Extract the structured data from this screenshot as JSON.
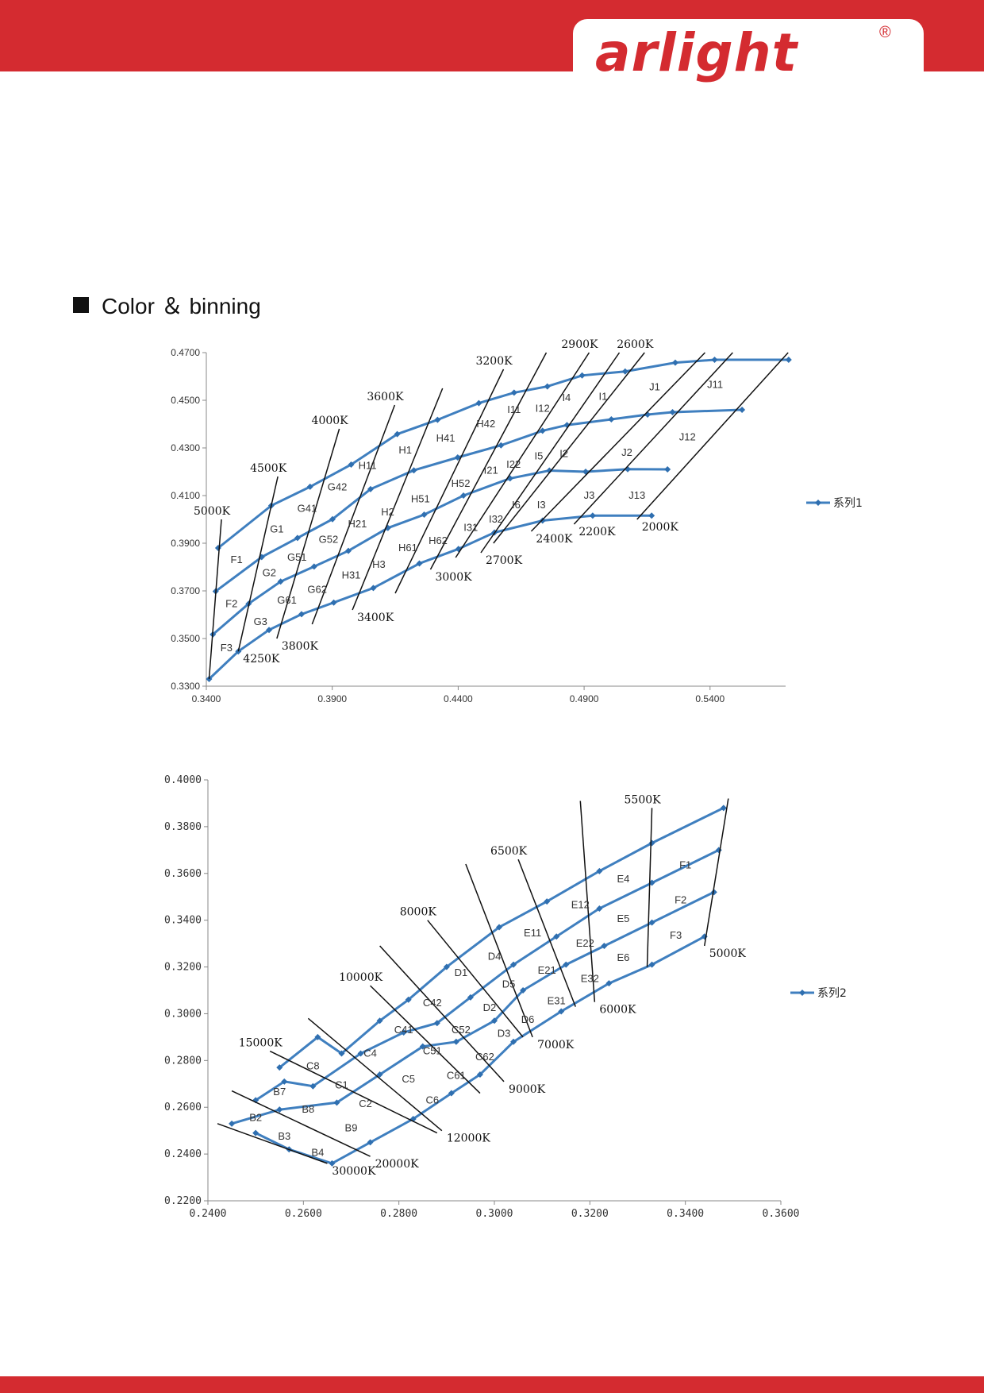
{
  "header": {
    "logo_text": "arlight",
    "logo_mark": "®",
    "accent": "#d42b30"
  },
  "section": {
    "title": "Color ＆ binning"
  },
  "chart_data": [
    {
      "type": "line",
      "legend": "系列1",
      "legend_position": "right",
      "xlim": [
        0.34,
        0.57
      ],
      "ylim": [
        0.33,
        0.47
      ],
      "x_ticks": [
        "0.3400",
        "0.3900",
        "0.4400",
        "0.4900",
        "0.5400"
      ],
      "y_ticks": [
        "0.3300",
        "0.3500",
        "0.3700",
        "0.3900",
        "0.4100",
        "0.4300",
        "0.4500",
        "0.4700"
      ],
      "curves": [
        {
          "x": [
            0.3447,
            0.3658,
            0.3812,
            0.3975,
            0.4158,
            0.4318,
            0.4482,
            0.4622,
            0.4754,
            0.4892,
            0.5063,
            0.5262,
            0.5418,
            0.5712
          ],
          "y": [
            0.388,
            0.4058,
            0.4137,
            0.423,
            0.4358,
            0.4418,
            0.4488,
            0.4532,
            0.4558,
            0.4604,
            0.4621,
            0.4658,
            0.467,
            0.467
          ]
        },
        {
          "x": [
            0.3437,
            0.362,
            0.3762,
            0.3901,
            0.4052,
            0.4224,
            0.4398,
            0.457,
            0.4735,
            0.4832,
            0.5008,
            0.5152,
            0.5251,
            0.5527
          ],
          "y": [
            0.3698,
            0.3842,
            0.3922,
            0.4001,
            0.4127,
            0.4206,
            0.426,
            0.4311,
            0.4372,
            0.4396,
            0.442,
            0.444,
            0.445,
            0.446
          ]
        },
        {
          "x": [
            0.3426,
            0.3568,
            0.3695,
            0.3828,
            0.3964,
            0.4121,
            0.4265,
            0.4421,
            0.4606,
            0.4762,
            0.4906,
            0.5073,
            0.5231
          ],
          "y": [
            0.3517,
            0.3646,
            0.3739,
            0.3802,
            0.3868,
            0.3964,
            0.402,
            0.41,
            0.4172,
            0.4205,
            0.42,
            0.4211,
            0.421
          ]
        },
        {
          "x": [
            0.3411,
            0.3527,
            0.3649,
            0.3778,
            0.3906,
            0.4063,
            0.4246,
            0.4401,
            0.4544,
            0.4735,
            0.4934,
            0.5168
          ],
          "y": [
            0.333,
            0.3446,
            0.3536,
            0.3602,
            0.3651,
            0.3712,
            0.3815,
            0.3876,
            0.3945,
            0.3995,
            0.4016,
            0.4016
          ]
        }
      ],
      "isotherms": [
        {
          "label": "5000K",
          "pos": "top",
          "from": [
            0.3411,
            0.333
          ],
          "to": [
            0.346,
            0.4
          ]
        },
        {
          "label": "4500K",
          "pos": "top",
          "from": [
            0.3527,
            0.3446
          ],
          "to": [
            0.3684,
            0.418
          ]
        },
        {
          "label": "4250K",
          "pos": "bottom",
          "from": [
            0.3527,
            0.3446
          ],
          "to": [
            0.3684,
            0.418
          ]
        },
        {
          "label": "4000K",
          "pos": "top",
          "from": [
            0.368,
            0.35
          ],
          "to": [
            0.3928,
            0.438
          ]
        },
        {
          "label": "3800K",
          "pos": "bottom",
          "from": [
            0.368,
            0.35
          ],
          "to": [
            0.3928,
            0.438
          ]
        },
        {
          "label": "3600K",
          "pos": "top",
          "from": [
            0.382,
            0.356
          ],
          "to": [
            0.4148,
            0.448
          ]
        },
        {
          "label": "3400K",
          "pos": "bottom",
          "from": [
            0.398,
            0.362
          ],
          "to": [
            0.4338,
            0.455
          ]
        },
        {
          "label": "3200K",
          "pos": "top",
          "from": [
            0.415,
            0.369
          ],
          "to": [
            0.458,
            0.463
          ]
        },
        {
          "label": "3000K",
          "pos": "bottom",
          "from": [
            0.429,
            0.379
          ],
          "to": [
            0.475,
            0.47
          ]
        },
        {
          "label": "2900K",
          "pos": "top",
          "from": [
            0.439,
            0.384
          ],
          "to": [
            0.492,
            0.47
          ]
        },
        {
          "label": "2700K",
          "pos": "bottom",
          "from": [
            0.449,
            0.386
          ],
          "to": [
            0.504,
            0.47
          ]
        },
        {
          "label": "2600K",
          "pos": "top",
          "from": [
            0.454,
            0.39
          ],
          "to": [
            0.514,
            0.47
          ]
        },
        {
          "label": "2400K",
          "pos": "bottom",
          "from": [
            0.469,
            0.395
          ],
          "to": [
            0.538,
            0.47
          ]
        },
        {
          "label": "2200K",
          "pos": "bottom",
          "from": [
            0.486,
            0.398
          ],
          "to": [
            0.549,
            0.47
          ]
        },
        {
          "label": "2000K",
          "pos": "bottom",
          "from": [
            0.511,
            0.4
          ],
          "to": [
            0.571,
            0.47
          ]
        }
      ],
      "bins": [
        {
          "label": "F1",
          "x": 0.352,
          "y": 0.383
        },
        {
          "label": "F2",
          "x": 0.35,
          "y": 0.3645
        },
        {
          "label": "F3",
          "x": 0.348,
          "y": 0.346
        },
        {
          "label": "G1",
          "x": 0.368,
          "y": 0.3958
        },
        {
          "label": "G2",
          "x": 0.365,
          "y": 0.3775
        },
        {
          "label": "G3",
          "x": 0.3615,
          "y": 0.357
        },
        {
          "label": "G41",
          "x": 0.38,
          "y": 0.4045
        },
        {
          "label": "G51",
          "x": 0.376,
          "y": 0.384
        },
        {
          "label": "G61",
          "x": 0.372,
          "y": 0.366
        },
        {
          "label": "G42",
          "x": 0.392,
          "y": 0.4135
        },
        {
          "label": "G52",
          "x": 0.3885,
          "y": 0.3915
        },
        {
          "label": "G62",
          "x": 0.384,
          "y": 0.3705
        },
        {
          "label": "H11",
          "x": 0.404,
          "y": 0.4225
        },
        {
          "label": "H21",
          "x": 0.4,
          "y": 0.398
        },
        {
          "label": "H31",
          "x": 0.3975,
          "y": 0.3765
        },
        {
          "label": "H1",
          "x": 0.419,
          "y": 0.429
        },
        {
          "label": "H2",
          "x": 0.412,
          "y": 0.403
        },
        {
          "label": "H3",
          "x": 0.4085,
          "y": 0.381
        },
        {
          "label": "H41",
          "x": 0.435,
          "y": 0.434
        },
        {
          "label": "H51",
          "x": 0.425,
          "y": 0.4085
        },
        {
          "label": "H61",
          "x": 0.42,
          "y": 0.388
        },
        {
          "label": "H42",
          "x": 0.451,
          "y": 0.44
        },
        {
          "label": "H52",
          "x": 0.441,
          "y": 0.415
        },
        {
          "label": "H62",
          "x": 0.432,
          "y": 0.391
        },
        {
          "label": "I11",
          "x": 0.4622,
          "y": 0.446
        },
        {
          "label": "I21",
          "x": 0.453,
          "y": 0.4205
        },
        {
          "label": "I31",
          "x": 0.445,
          "y": 0.3965
        },
        {
          "label": "I12",
          "x": 0.4735,
          "y": 0.4465
        },
        {
          "label": "I22",
          "x": 0.462,
          "y": 0.423
        },
        {
          "label": "I32",
          "x": 0.455,
          "y": 0.4
        },
        {
          "label": "I4",
          "x": 0.483,
          "y": 0.451
        },
        {
          "label": "I5",
          "x": 0.472,
          "y": 0.4265
        },
        {
          "label": "I6",
          "x": 0.463,
          "y": 0.406
        },
        {
          "label": "I1",
          "x": 0.4975,
          "y": 0.4515
        },
        {
          "label": "I2",
          "x": 0.482,
          "y": 0.4275
        },
        {
          "label": "I3",
          "x": 0.473,
          "y": 0.406
        },
        {
          "label": "J1",
          "x": 0.518,
          "y": 0.4555
        },
        {
          "label": "J2",
          "x": 0.507,
          "y": 0.428
        },
        {
          "label": "J3",
          "x": 0.492,
          "y": 0.41
        },
        {
          "label": "J11",
          "x": 0.542,
          "y": 0.4565
        },
        {
          "label": "J12",
          "x": 0.531,
          "y": 0.4345
        },
        {
          "label": "J13",
          "x": 0.511,
          "y": 0.41
        }
      ]
    },
    {
      "type": "line",
      "legend": "系列2",
      "legend_position": "right",
      "xlim": [
        0.24,
        0.36
      ],
      "ylim": [
        0.22,
        0.4
      ],
      "x_ticks": [
        "0.2400",
        "0.2600",
        "0.2800",
        "0.3000",
        "0.3200",
        "0.3400",
        "0.3600"
      ],
      "y_ticks": [
        "0.2200",
        "0.2400",
        "0.2600",
        "0.2800",
        "0.3000",
        "0.3200",
        "0.3400",
        "0.3600",
        "0.3800",
        "0.4000"
      ],
      "curves": [
        {
          "x": [
            0.255,
            0.263,
            0.268,
            0.276,
            0.282,
            0.29,
            0.301,
            0.311,
            0.322,
            0.333,
            0.348
          ],
          "y": [
            0.277,
            0.29,
            0.283,
            0.297,
            0.306,
            0.32,
            0.337,
            0.348,
            0.361,
            0.373,
            0.388
          ]
        },
        {
          "x": [
            0.25,
            0.256,
            0.262,
            0.272,
            0.281,
            0.288,
            0.295,
            0.304,
            0.313,
            0.322,
            0.333,
            0.347
          ],
          "y": [
            0.263,
            0.271,
            0.269,
            0.283,
            0.292,
            0.296,
            0.307,
            0.321,
            0.333,
            0.345,
            0.356,
            0.37
          ]
        },
        {
          "x": [
            0.245,
            0.255,
            0.267,
            0.276,
            0.285,
            0.292,
            0.3,
            0.306,
            0.315,
            0.323,
            0.333,
            0.346
          ],
          "y": [
            0.253,
            0.259,
            0.262,
            0.274,
            0.286,
            0.288,
            0.297,
            0.31,
            0.321,
            0.329,
            0.339,
            0.352
          ]
        },
        {
          "x": [
            0.25,
            0.257,
            0.266,
            0.274,
            0.283,
            0.291,
            0.297,
            0.304,
            0.314,
            0.324,
            0.333,
            0.344
          ],
          "y": [
            0.249,
            0.242,
            0.236,
            0.245,
            0.255,
            0.266,
            0.274,
            0.288,
            0.301,
            0.313,
            0.321,
            0.333
          ]
        }
      ],
      "isotherms": [
        {
          "label": "5500K",
          "pos": "top",
          "from": [
            0.332,
            0.32
          ],
          "to": [
            0.333,
            0.388
          ]
        },
        {
          "label": "5000K",
          "pos": "bottom",
          "from": [
            0.344,
            0.329
          ],
          "to": [
            0.349,
            0.392
          ]
        },
        {
          "label": "6000K",
          "pos": "bottom",
          "from": [
            0.321,
            0.305
          ],
          "to": [
            0.318,
            0.391
          ]
        },
        {
          "label": "6500K",
          "pos": "top",
          "from": [
            0.317,
            0.303
          ],
          "to": [
            0.305,
            0.366
          ]
        },
        {
          "label": "7000K",
          "pos": "bottom",
          "from": [
            0.308,
            0.29
          ],
          "to": [
            0.294,
            0.364
          ]
        },
        {
          "label": "8000K",
          "pos": "top",
          "from": [
            0.306,
            0.29
          ],
          "to": [
            0.286,
            0.34
          ]
        },
        {
          "label": "9000K",
          "pos": "bottom",
          "from": [
            0.302,
            0.271
          ],
          "to": [
            0.276,
            0.329
          ]
        },
        {
          "label": "10000K",
          "pos": "top",
          "from": [
            0.297,
            0.266
          ],
          "to": [
            0.274,
            0.312
          ]
        },
        {
          "label": "12000K",
          "pos": "bottom",
          "from": [
            0.289,
            0.25
          ],
          "to": [
            0.261,
            0.298
          ]
        },
        {
          "label": "15000K",
          "pos": "top",
          "from": [
            0.288,
            0.249
          ],
          "to": [
            0.253,
            0.284
          ]
        },
        {
          "label": "20000K",
          "pos": "bottom",
          "from": [
            0.274,
            0.239
          ],
          "to": [
            0.245,
            0.267
          ]
        },
        {
          "label": "30000K",
          "pos": "bottom",
          "from": [
            0.265,
            0.236
          ],
          "to": [
            0.242,
            0.253
          ]
        }
      ],
      "bins": [
        {
          "label": "B2",
          "x": 0.25,
          "y": 0.2555
        },
        {
          "label": "B3",
          "x": 0.256,
          "y": 0.2475
        },
        {
          "label": "B4",
          "x": 0.263,
          "y": 0.2405
        },
        {
          "label": "B7",
          "x": 0.255,
          "y": 0.2665
        },
        {
          "label": "B8",
          "x": 0.261,
          "y": 0.259
        },
        {
          "label": "B9",
          "x": 0.27,
          "y": 0.251
        },
        {
          "label": "C8",
          "x": 0.262,
          "y": 0.2775
        },
        {
          "label": "C1",
          "x": 0.268,
          "y": 0.2695
        },
        {
          "label": "C2",
          "x": 0.273,
          "y": 0.2615
        },
        {
          "label": "C4",
          "x": 0.274,
          "y": 0.283
        },
        {
          "label": "C5",
          "x": 0.282,
          "y": 0.272
        },
        {
          "label": "C6",
          "x": 0.287,
          "y": 0.263
        },
        {
          "label": "C41",
          "x": 0.281,
          "y": 0.293
        },
        {
          "label": "C51",
          "x": 0.287,
          "y": 0.284
        },
        {
          "label": "C61",
          "x": 0.292,
          "y": 0.2735
        },
        {
          "label": "C42",
          "x": 0.287,
          "y": 0.3045
        },
        {
          "label": "C52",
          "x": 0.293,
          "y": 0.293
        },
        {
          "label": "C62",
          "x": 0.298,
          "y": 0.2815
        },
        {
          "label": "D1",
          "x": 0.293,
          "y": 0.3175
        },
        {
          "label": "D2",
          "x": 0.299,
          "y": 0.3025
        },
        {
          "label": "D3",
          "x": 0.302,
          "y": 0.2915
        },
        {
          "label": "D4",
          "x": 0.3,
          "y": 0.3245
        },
        {
          "label": "D5",
          "x": 0.303,
          "y": 0.3125
        },
        {
          "label": "D6",
          "x": 0.307,
          "y": 0.2975
        },
        {
          "label": "E11",
          "x": 0.308,
          "y": 0.3345
        },
        {
          "label": "E21",
          "x": 0.311,
          "y": 0.3185
        },
        {
          "label": "E31",
          "x": 0.313,
          "y": 0.3055
        },
        {
          "label": "E12",
          "x": 0.318,
          "y": 0.3465
        },
        {
          "label": "E22",
          "x": 0.319,
          "y": 0.33
        },
        {
          "label": "E32",
          "x": 0.32,
          "y": 0.315
        },
        {
          "label": "E4",
          "x": 0.327,
          "y": 0.3575
        },
        {
          "label": "E5",
          "x": 0.327,
          "y": 0.3405
        },
        {
          "label": "E6",
          "x": 0.327,
          "y": 0.324
        },
        {
          "label": "F1",
          "x": 0.34,
          "y": 0.3635
        },
        {
          "label": "F2",
          "x": 0.339,
          "y": 0.3485
        },
        {
          "label": "F3",
          "x": 0.338,
          "y": 0.3335
        }
      ]
    }
  ]
}
